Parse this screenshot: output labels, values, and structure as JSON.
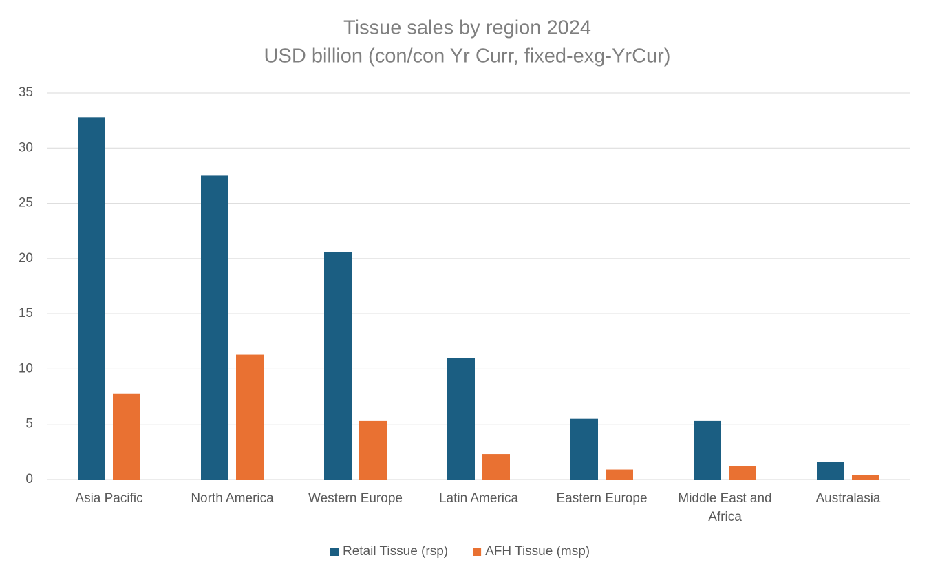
{
  "chart_data": {
    "type": "bar",
    "title": "Tissue sales by region 2024",
    "subtitle": "USD billion (con/con Yr Curr, fixed-exg-YrCur)",
    "categories": [
      "Asia Pacific",
      "North America",
      "Western Europe",
      "Latin America",
      "Eastern Europe",
      "Middle East and Africa",
      "Australasia"
    ],
    "series": [
      {
        "name": "Retail Tissue (rsp)",
        "color": "#1b5e82",
        "values": [
          32.8,
          27.5,
          20.6,
          11.0,
          5.5,
          5.3,
          1.6
        ]
      },
      {
        "name": "AFH Tissue (msp)",
        "color": "#e97132",
        "values": [
          7.8,
          11.3,
          5.3,
          2.3,
          0.9,
          1.2,
          0.4
        ]
      }
    ],
    "ylim": [
      0,
      35
    ],
    "yticks": [
      0,
      5,
      10,
      15,
      20,
      25,
      30,
      35
    ],
    "grid": true,
    "legend": "bottom"
  }
}
